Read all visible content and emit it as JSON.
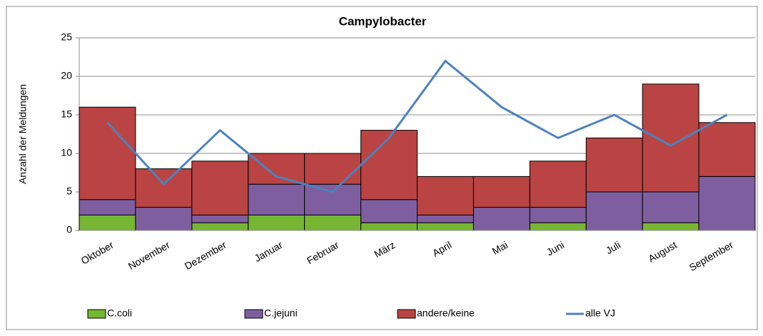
{
  "chart_data": {
    "type": "bar",
    "stacked": true,
    "title": "Campylobacter",
    "y_label": "Anzahl der Meldungen",
    "categories": [
      "Oktober",
      "November",
      "Dezember",
      "Januar",
      "Februar",
      "März",
      "April",
      "Mai",
      "Juni",
      "Juli",
      "August",
      "September"
    ],
    "series": [
      {
        "name": "C.coli",
        "color": "#77b632",
        "type": "bar",
        "values": [
          2,
          0,
          1,
          2,
          2,
          1,
          1,
          0,
          1,
          0,
          1,
          0
        ]
      },
      {
        "name": "C.jejuni",
        "color": "#7f5ea0",
        "type": "bar",
        "values": [
          2,
          3,
          1,
          4,
          4,
          3,
          1,
          3,
          2,
          5,
          4,
          7
        ]
      },
      {
        "name": "andere/keine",
        "color": "#b94443",
        "type": "bar",
        "values": [
          12,
          5,
          7,
          4,
          4,
          9,
          5,
          4,
          6,
          7,
          14,
          7
        ]
      },
      {
        "name": "alle VJ",
        "color": "#4f81bd",
        "type": "line",
        "values": [
          14,
          6,
          13,
          7,
          5,
          12,
          22,
          16,
          12,
          15,
          11,
          15
        ]
      }
    ],
    "ylim": [
      0,
      25
    ],
    "yticks": [
      0,
      5,
      10,
      15,
      20,
      25
    ],
    "grid": true,
    "legend": "bottom"
  }
}
